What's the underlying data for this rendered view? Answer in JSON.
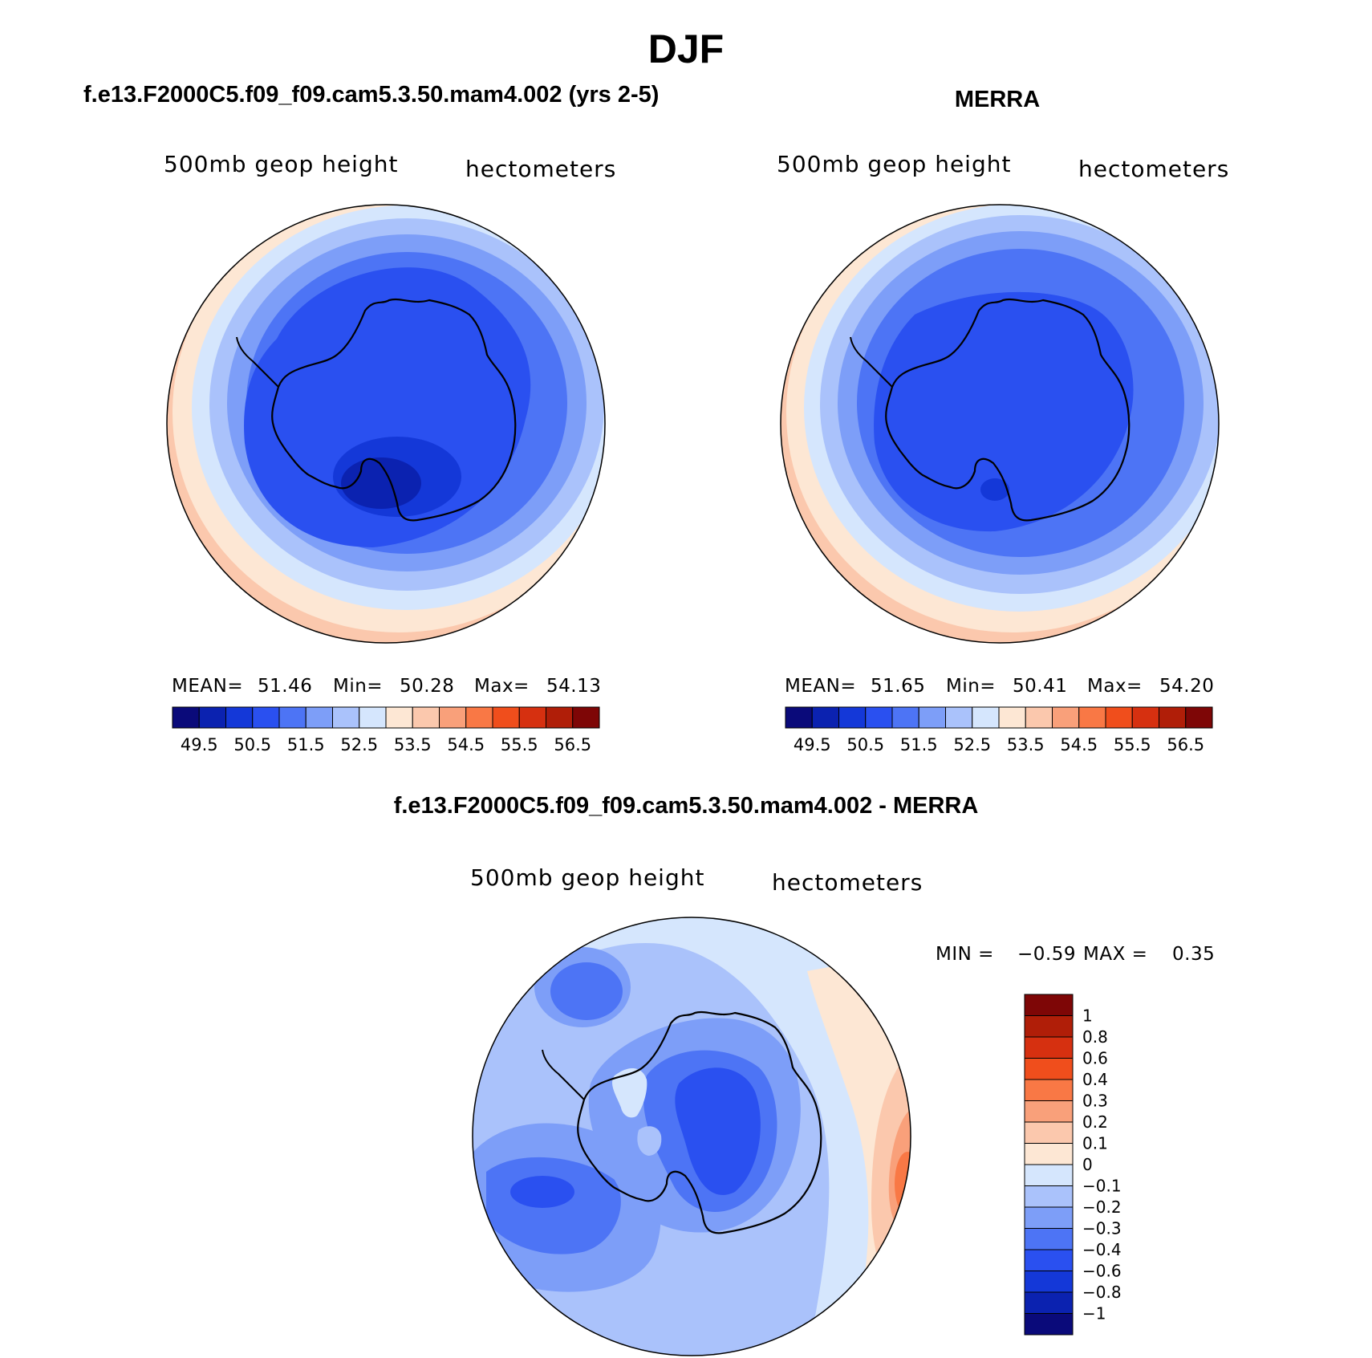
{
  "figure": {
    "title": "DJF",
    "colors": {
      "coast": "#000000",
      "ocean_edge": "#000000"
    }
  },
  "panels": {
    "model": {
      "title": "f.e13.F2000C5.f09_f09.cam5.3.50.mam4.002 (yrs 2-5)",
      "left_label": "500mb  geop  height",
      "right_label": "hectometers",
      "stats": {
        "mean_label": "MEAN=",
        "mean": "51.46",
        "min_label": "Min=",
        "min": "50.28",
        "max_label": "Max=",
        "max": "54.13"
      }
    },
    "obs": {
      "title": "MERRA",
      "left_label": "500mb  geop  height",
      "right_label": "hectometers",
      "stats": {
        "mean_label": "MEAN=",
        "mean": "51.65",
        "min_label": "Min=",
        "min": "50.41",
        "max_label": "Max=",
        "max": "54.20"
      }
    },
    "diff": {
      "title": "f.e13.F2000C5.f09_f09.cam5.3.50.mam4.002 - MERRA",
      "left_label": "500mb  geop  height",
      "right_label": "hectometers",
      "min_label": "MIN =",
      "min": "−0.59",
      "max_label": "MAX =",
      "max": "0.35"
    }
  },
  "colorbar_main": {
    "tick_labels": [
      "49.5",
      "50.5",
      "51.5",
      "52.5",
      "53.5",
      "54.5",
      "55.5",
      "56.5"
    ],
    "colors": [
      "#0a0a7a",
      "#0b22b0",
      "#1438d8",
      "#2a50f0",
      "#4d74f5",
      "#7d9ef8",
      "#aac2fb",
      "#d5e6fd",
      "#fde7d4",
      "#fbc8ad",
      "#f9a07a",
      "#f97845",
      "#f04e1c",
      "#d63010",
      "#b01e08",
      "#7e0606"
    ]
  },
  "colorbar_diff": {
    "tick_labels": [
      "1",
      "0.8",
      "0.6",
      "0.4",
      "0.3",
      "0.2",
      "0.1",
      "0",
      "−0.1",
      "−0.2",
      "−0.3",
      "−0.4",
      "−0.6",
      "−0.8",
      "−1"
    ],
    "colors": [
      "#7e0606",
      "#b01e08",
      "#d63010",
      "#f04e1c",
      "#f97845",
      "#f9a07a",
      "#fbc8ad",
      "#fde7d4",
      "#d5e6fd",
      "#aac2fb",
      "#7d9ef8",
      "#4d74f5",
      "#2a50f0",
      "#1438d8",
      "#0b22b0",
      "#0a0a7a"
    ]
  }
}
